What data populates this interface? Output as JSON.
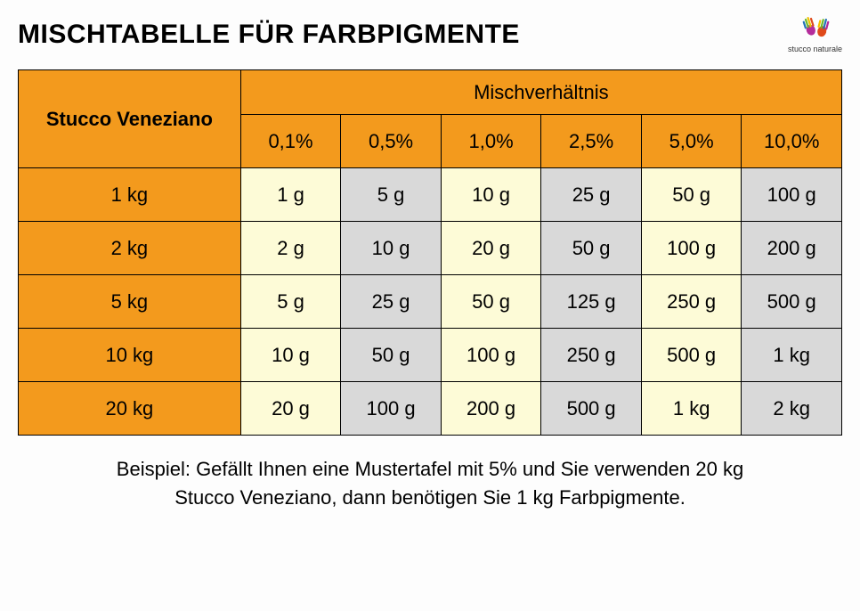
{
  "title": "MISCHTABELLE FÜR FARBPIGMENTE",
  "logo": {
    "text": "stucco naturale"
  },
  "table": {
    "row_header": "Stucco Veneziano",
    "ratio_header": "Mischverhältnis",
    "percent_columns": [
      "0,1%",
      "0,5%",
      "1,0%",
      "2,5%",
      "5,0%",
      "10,0%"
    ],
    "row_labels": [
      "1 kg",
      "2 kg",
      "5 kg",
      "10 kg",
      "20 kg"
    ],
    "cells": [
      [
        "1 g",
        "5 g",
        "10 g",
        "25 g",
        "50 g",
        "100 g"
      ],
      [
        "2 g",
        "10 g",
        "20 g",
        "50 g",
        "100 g",
        "200 g"
      ],
      [
        "5 g",
        "25 g",
        "50 g",
        "125 g",
        "250 g",
        "500 g"
      ],
      [
        "10 g",
        "50 g",
        "100 g",
        "250 g",
        "500 g",
        "1 kg"
      ],
      [
        "20 g",
        "100 g",
        "200 g",
        "500 g",
        "1 kg",
        "2 kg"
      ]
    ],
    "column_shades": [
      "cream",
      "grey",
      "cream",
      "grey",
      "cream",
      "grey"
    ],
    "colors": {
      "header_bg": "#f39a1d",
      "cream_bg": "#fdfbd7",
      "grey_bg": "#d9d9d9",
      "border": "#000000",
      "page_bg": "#fdfdfd"
    },
    "font_sizes": {
      "title": 30,
      "cell": 22,
      "footer": 22
    }
  },
  "footer": "Beispiel: Gefällt Ihnen eine Mustertafel mit 5% und Sie verwenden 20 kg Stucco Veneziano, dann benötigen Sie 1 kg Farbpigmente."
}
